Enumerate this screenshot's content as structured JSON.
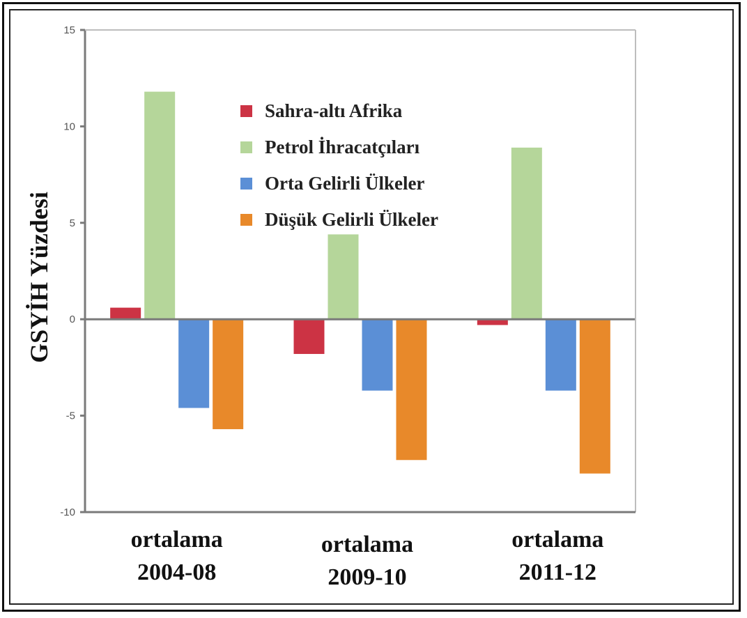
{
  "chart_data": {
    "type": "bar",
    "title": "",
    "ylabel": "GSYİH Yüzdesi",
    "xlabel": "",
    "ylim": [
      -10,
      15
    ],
    "yticks": [
      "15",
      "10",
      "5",
      "0",
      "-5",
      "-10"
    ],
    "categories": [
      {
        "line1": "ortalama",
        "line2": "2004-08"
      },
      {
        "line1": "ortalama",
        "line2": "2009-10"
      },
      {
        "line1": "ortalama",
        "line2": "2011-12"
      }
    ],
    "series": [
      {
        "name": "Sahra-altı Afrika",
        "color": "#cc3344",
        "values": [
          0.6,
          -1.8,
          -0.3
        ]
      },
      {
        "name": "Petrol İhracatçıları",
        "color": "#b5d69a",
        "values": [
          11.8,
          4.4,
          8.9
        ]
      },
      {
        "name": "Orta Gelirli Ülkeler",
        "color": "#5b8fd6",
        "values": [
          -4.6,
          -3.7,
          -3.7
        ]
      },
      {
        "name": "Düşük Gelirli Ülkeler",
        "color": "#e8892a",
        "values": [
          -5.7,
          -7.3,
          -8.0
        ]
      }
    ],
    "legend_position": "top-center",
    "grid": false
  }
}
